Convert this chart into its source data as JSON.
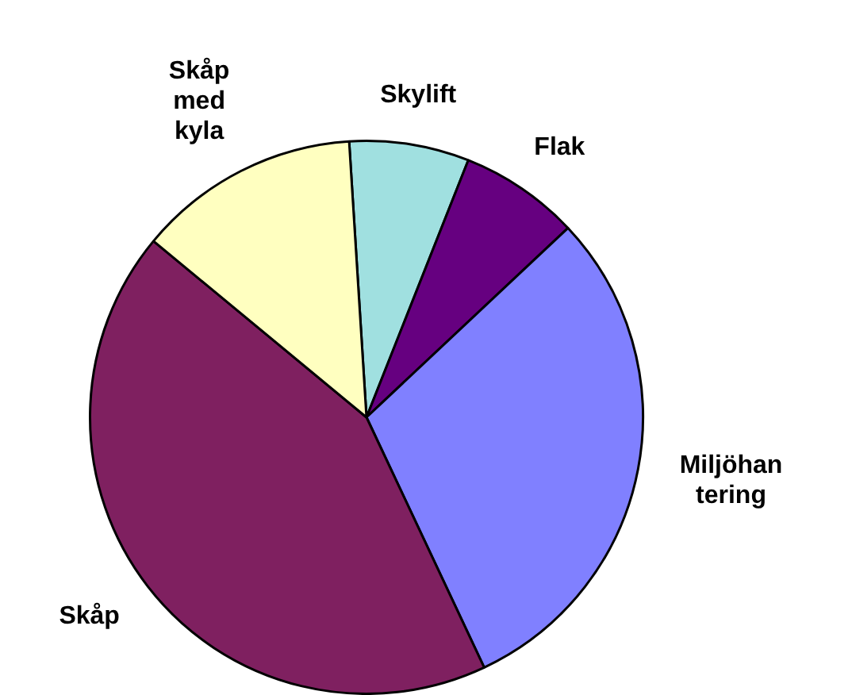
{
  "chart_data": {
    "type": "pie",
    "categories": [
      "Skylift",
      "Flak",
      "Miljöhantering",
      "Skåp",
      "Skåp med kyla"
    ],
    "values": [
      7,
      7,
      30,
      43,
      13
    ],
    "colors": [
      "#a0e0e0",
      "#660080",
      "#8080ff",
      "#7f2060",
      "#ffffc0"
    ],
    "legend": false
  }
}
